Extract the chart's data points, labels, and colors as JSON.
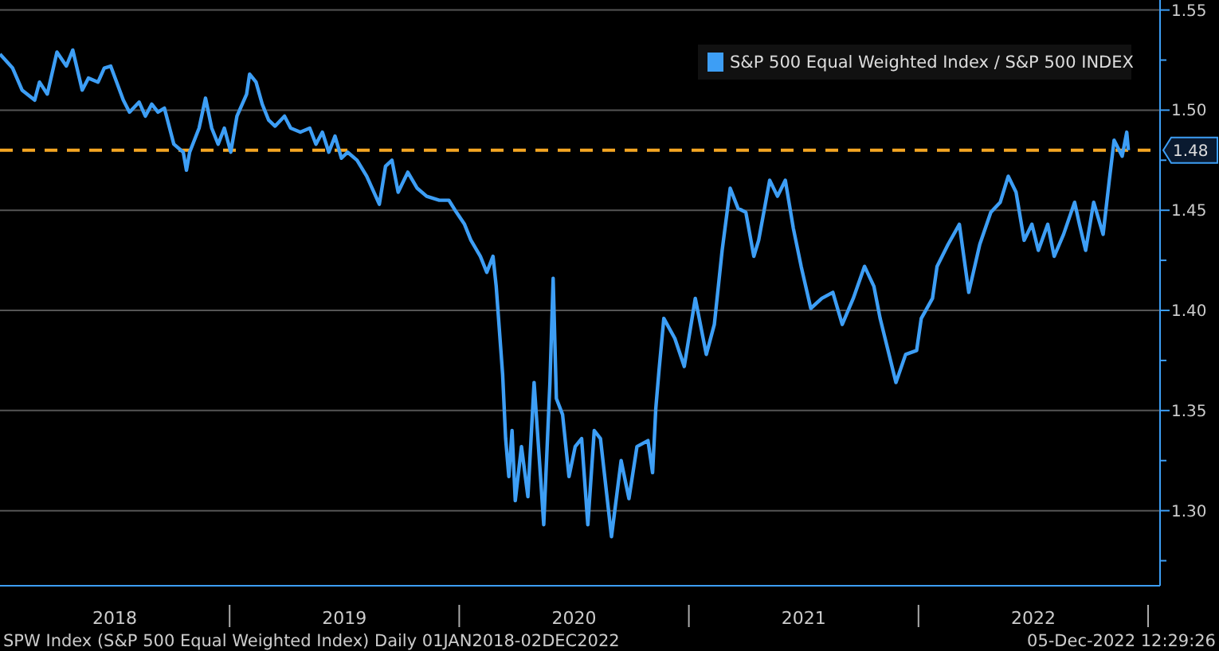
{
  "chart_data": {
    "type": "line",
    "x": [
      2018.0,
      2018.055,
      2018.096,
      2018.151,
      2018.172,
      2018.206,
      2018.248,
      2018.289,
      2018.317,
      2018.358,
      2018.385,
      2018.427,
      2018.454,
      2018.482,
      2018.537,
      2018.564,
      2018.606,
      2018.633,
      2018.661,
      2018.688,
      2018.716,
      2018.757,
      2018.798,
      2018.812,
      2018.826,
      2018.867,
      2018.895,
      2018.922,
      2018.95,
      2018.977,
      2019.005,
      2019.032,
      2019.074,
      2019.087,
      2019.115,
      2019.142,
      2019.17,
      2019.198,
      2019.239,
      2019.266,
      2019.308,
      2019.349,
      2019.376,
      2019.404,
      2019.432,
      2019.459,
      2019.487,
      2019.514,
      2019.555,
      2019.597,
      2019.652,
      2019.679,
      2019.707,
      2019.734,
      2019.776,
      2019.817,
      2019.858,
      2019.913,
      2019.955,
      2019.982,
      2020.023,
      2020.051,
      2020.092,
      2020.12,
      2020.147,
      2020.161,
      2020.189,
      2020.202,
      2020.216,
      2020.23,
      2020.244,
      2020.271,
      2020.299,
      2020.326,
      2020.354,
      2020.368,
      2020.395,
      2020.409,
      2020.423,
      2020.45,
      2020.478,
      2020.505,
      2020.533,
      2020.56,
      2020.588,
      2020.615,
      2020.663,
      2020.705,
      2020.739,
      2020.774,
      2020.822,
      2020.842,
      2020.856,
      2020.87,
      2020.891,
      2020.939,
      2020.98,
      2021.028,
      2021.076,
      2021.111,
      2021.145,
      2021.18,
      2021.214,
      2021.248,
      2021.283,
      2021.304,
      2021.352,
      2021.386,
      2021.42,
      2021.455,
      2021.489,
      2021.531,
      2021.579,
      2021.627,
      2021.668,
      2021.716,
      2021.765,
      2021.806,
      2021.833,
      2021.902,
      2021.944,
      2021.992,
      2022.012,
      2022.061,
      2022.081,
      2022.129,
      2022.178,
      2022.219,
      2022.267,
      2022.315,
      2022.356,
      2022.391,
      2022.425,
      2022.46,
      2022.494,
      2022.522,
      2022.563,
      2022.591,
      2022.632,
      2022.68,
      2022.701,
      2022.728,
      2022.763,
      2022.804,
      2022.831,
      2022.852,
      2022.887,
      2022.907,
      2022.914
    ],
    "series": [
      {
        "name": "S&P 500 Equal Weighted Index / S&P 500 INDEX",
        "color": "#3d9ef5",
        "values": [
          1.528,
          1.521,
          1.51,
          1.505,
          1.514,
          1.508,
          1.529,
          1.522,
          1.53,
          1.51,
          1.516,
          1.514,
          1.521,
          1.522,
          1.505,
          1.499,
          1.504,
          1.497,
          1.503,
          1.499,
          1.501,
          1.483,
          1.479,
          1.47,
          1.479,
          1.491,
          1.506,
          1.491,
          1.483,
          1.491,
          1.479,
          1.497,
          1.508,
          1.518,
          1.514,
          1.503,
          1.495,
          1.492,
          1.497,
          1.491,
          1.489,
          1.491,
          1.483,
          1.489,
          1.479,
          1.487,
          1.476,
          1.479,
          1.475,
          1.467,
          1.453,
          1.472,
          1.475,
          1.459,
          1.469,
          1.461,
          1.457,
          1.455,
          1.455,
          1.45,
          1.443,
          1.435,
          1.427,
          1.419,
          1.427,
          1.412,
          1.368,
          1.336,
          1.317,
          1.34,
          1.305,
          1.332,
          1.307,
          1.364,
          1.317,
          1.293,
          1.364,
          1.416,
          1.356,
          1.348,
          1.317,
          1.332,
          1.336,
          1.293,
          1.34,
          1.336,
          1.287,
          1.325,
          1.306,
          1.332,
          1.335,
          1.319,
          1.351,
          1.37,
          1.396,
          1.386,
          1.372,
          1.406,
          1.378,
          1.393,
          1.43,
          1.461,
          1.451,
          1.449,
          1.427,
          1.435,
          1.465,
          1.457,
          1.465,
          1.441,
          1.422,
          1.401,
          1.406,
          1.409,
          1.393,
          1.406,
          1.422,
          1.412,
          1.396,
          1.364,
          1.378,
          1.38,
          1.396,
          1.406,
          1.422,
          1.433,
          1.443,
          1.409,
          1.433,
          1.449,
          1.454,
          1.467,
          1.459,
          1.435,
          1.443,
          1.43,
          1.443,
          1.427,
          1.438,
          1.454,
          1.443,
          1.43,
          1.454,
          1.438,
          1.465,
          1.485,
          1.477,
          1.489,
          1.48
        ]
      }
    ],
    "xlim": [
      2018,
      2023.052
    ],
    "xticks": [
      {
        "value": 2018.5,
        "label": "2018"
      },
      {
        "value": 2019,
        "label": null
      },
      {
        "value": 2019.5,
        "label": "2019"
      },
      {
        "value": 2020,
        "label": null
      },
      {
        "value": 2020.5,
        "label": "2020"
      },
      {
        "value": 2021,
        "label": null
      },
      {
        "value": 2021.5,
        "label": "2021"
      },
      {
        "value": 2022,
        "label": null
      },
      {
        "value": 2022.5,
        "label": "2022"
      },
      {
        "value": 2023,
        "label": null
      }
    ],
    "ylim": [
      1.2625,
      1.555
    ],
    "yticks": [
      {
        "value": 1.275,
        "label": null
      },
      {
        "value": 1.3,
        "label": "1.30"
      },
      {
        "value": 1.325,
        "label": null
      },
      1.35,
      {
        "value": 1.375,
        "label": null
      },
      {
        "value": 1.4,
        "label": "1.40"
      },
      {
        "value": 1.425,
        "label": null
      },
      1.45,
      {
        "value": 1.475,
        "label": null
      },
      {
        "value": 1.5,
        "label": "1.50"
      },
      {
        "value": 1.525,
        "label": null
      },
      1.55
    ],
    "ref_lines": [
      {
        "axis": "y",
        "value": 1.48,
        "label": "1.48",
        "color": "#f5a623",
        "line_style": "dashed"
      }
    ],
    "grid": "y",
    "legend": "top right",
    "annotations": [
      "SPW Index (S&P 500 Equal Weighted Index)  Daily 01JAN2018-02DEC2022",
      "05-Dec-2022 12:29:26"
    ]
  }
}
